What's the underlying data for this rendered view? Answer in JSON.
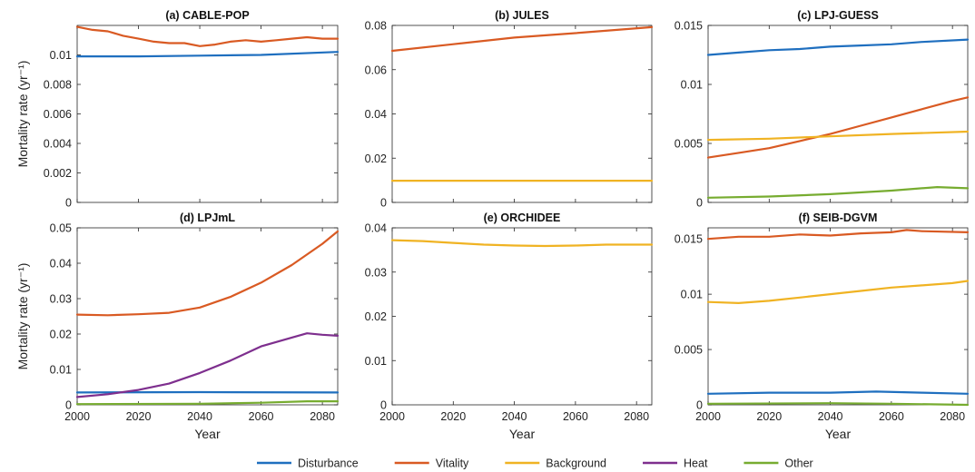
{
  "colors": {
    "Disturbance": "#1f6fbf",
    "Vitality": "#d95a23",
    "Background": "#f0b323",
    "Heat": "#7e2f8e",
    "Other": "#77ac30"
  },
  "legend": [
    "Disturbance",
    "Vitality",
    "Background",
    "Heat",
    "Other"
  ],
  "chart_data": [
    {
      "type": "line",
      "title": "(a) CABLE-POP",
      "xlabel": "",
      "ylabel": "Mortality rate (yr⁻¹)",
      "xlim": [
        2000,
        2085
      ],
      "ylim": [
        0,
        0.012
      ],
      "xticks": [],
      "yticks": [
        0,
        0.002,
        0.004,
        0.006,
        0.008,
        0.01
      ],
      "ytick_labels": [
        "0",
        "0.002",
        "0.004",
        "0.006",
        "0.008",
        "0.01"
      ],
      "series": [
        {
          "name": "Disturbance",
          "x": [
            2000,
            2020,
            2040,
            2060,
            2085
          ],
          "y": [
            0.0099,
            0.0099,
            0.00995,
            0.01,
            0.0102
          ]
        },
        {
          "name": "Vitality",
          "x": [
            2000,
            2005,
            2010,
            2015,
            2020,
            2025,
            2030,
            2035,
            2040,
            2045,
            2050,
            2055,
            2060,
            2065,
            2070,
            2075,
            2080,
            2085
          ],
          "y": [
            0.0119,
            0.0117,
            0.0116,
            0.0113,
            0.0111,
            0.0109,
            0.0108,
            0.0108,
            0.0106,
            0.0107,
            0.0109,
            0.011,
            0.0109,
            0.011,
            0.0111,
            0.0112,
            0.0111,
            0.0111
          ]
        }
      ]
    },
    {
      "type": "line",
      "title": "(b) JULES",
      "xlabel": "",
      "ylabel": "",
      "xlim": [
        2000,
        2085
      ],
      "ylim": [
        0,
        0.08
      ],
      "xticks": [],
      "yticks": [
        0,
        0.02,
        0.04,
        0.06,
        0.08
      ],
      "ytick_labels": [
        "0",
        "0.02",
        "0.04",
        "0.06",
        "0.08"
      ],
      "series": [
        {
          "name": "Vitality",
          "x": [
            2000,
            2020,
            2040,
            2060,
            2085
          ],
          "y": [
            0.0685,
            0.0715,
            0.0745,
            0.0765,
            0.0792
          ]
        },
        {
          "name": "Background",
          "x": [
            2000,
            2085
          ],
          "y": [
            0.0098,
            0.0098
          ]
        }
      ]
    },
    {
      "type": "line",
      "title": "(c) LPJ-GUESS",
      "xlabel": "",
      "ylabel": "",
      "xlim": [
        2000,
        2085
      ],
      "ylim": [
        0,
        0.015
      ],
      "xticks": [],
      "yticks": [
        0,
        0.005,
        0.01,
        0.015
      ],
      "ytick_labels": [
        "0",
        "0.005",
        "0.01",
        "0.015"
      ],
      "series": [
        {
          "name": "Disturbance",
          "x": [
            2000,
            2010,
            2020,
            2030,
            2040,
            2050,
            2060,
            2070,
            2085
          ],
          "y": [
            0.0125,
            0.0127,
            0.0129,
            0.013,
            0.0132,
            0.0133,
            0.0134,
            0.0136,
            0.0138
          ]
        },
        {
          "name": "Vitality",
          "x": [
            2000,
            2010,
            2020,
            2030,
            2040,
            2050,
            2060,
            2070,
            2080,
            2085
          ],
          "y": [
            0.0038,
            0.0042,
            0.0046,
            0.0052,
            0.0058,
            0.0065,
            0.0072,
            0.0079,
            0.0086,
            0.0089
          ]
        },
        {
          "name": "Background",
          "x": [
            2000,
            2020,
            2040,
            2060,
            2085
          ],
          "y": [
            0.0053,
            0.0054,
            0.0056,
            0.0058,
            0.006
          ]
        },
        {
          "name": "Other",
          "x": [
            2000,
            2020,
            2040,
            2060,
            2075,
            2085
          ],
          "y": [
            0.0004,
            0.0005,
            0.0007,
            0.001,
            0.0013,
            0.0012
          ]
        }
      ]
    },
    {
      "type": "line",
      "title": "(d) LPJmL",
      "xlabel": "Year",
      "ylabel": "Mortality rate (yr⁻¹)",
      "xlim": [
        2000,
        2085
      ],
      "ylim": [
        0,
        0.05
      ],
      "xticks": [
        2000,
        2020,
        2040,
        2060,
        2080
      ],
      "yticks": [
        0,
        0.01,
        0.02,
        0.03,
        0.04,
        0.05
      ],
      "ytick_labels": [
        "0",
        "0.01",
        "0.02",
        "0.03",
        "0.04",
        "0.05"
      ],
      "series": [
        {
          "name": "Disturbance",
          "x": [
            2000,
            2040,
            2085
          ],
          "y": [
            0.0035,
            0.0036,
            0.0035
          ]
        },
        {
          "name": "Vitality",
          "x": [
            2000,
            2010,
            2020,
            2030,
            2040,
            2050,
            2060,
            2070,
            2080,
            2085
          ],
          "y": [
            0.0255,
            0.0253,
            0.0256,
            0.026,
            0.0275,
            0.0305,
            0.0345,
            0.0395,
            0.0455,
            0.049
          ]
        },
        {
          "name": "Heat",
          "x": [
            2000,
            2010,
            2020,
            2030,
            2040,
            2050,
            2060,
            2070,
            2075,
            2080,
            2085
          ],
          "y": [
            0.0022,
            0.003,
            0.0042,
            0.006,
            0.009,
            0.0125,
            0.0165,
            0.019,
            0.0202,
            0.0198,
            0.0195
          ]
        },
        {
          "name": "Other",
          "x": [
            2000,
            2040,
            2060,
            2075,
            2085
          ],
          "y": [
            0.0002,
            0.0003,
            0.0006,
            0.001,
            0.001
          ]
        }
      ]
    },
    {
      "type": "line",
      "title": "(e) ORCHIDEE",
      "xlabel": "Year",
      "ylabel": "",
      "xlim": [
        2000,
        2085
      ],
      "ylim": [
        0,
        0.04
      ],
      "xticks": [
        2000,
        2020,
        2040,
        2060,
        2080
      ],
      "yticks": [
        0,
        0.01,
        0.02,
        0.03,
        0.04
      ],
      "ytick_labels": [
        "0",
        "0.01",
        "0.02",
        "0.03",
        "0.04"
      ],
      "series": [
        {
          "name": "Background",
          "x": [
            2000,
            2010,
            2020,
            2030,
            2040,
            2050,
            2060,
            2070,
            2085
          ],
          "y": [
            0.0372,
            0.037,
            0.0366,
            0.0362,
            0.036,
            0.0359,
            0.036,
            0.0362,
            0.0362
          ]
        }
      ]
    },
    {
      "type": "line",
      "title": "(f) SEIB-DGVM",
      "xlabel": "Year",
      "ylabel": "",
      "xlim": [
        2000,
        2085
      ],
      "ylim": [
        0,
        0.016
      ],
      "xticks": [
        2000,
        2020,
        2040,
        2060,
        2080
      ],
      "yticks": [
        0,
        0.005,
        0.01,
        0.015
      ],
      "ytick_labels": [
        "0",
        "0.005",
        "0.01",
        "0.015"
      ],
      "series": [
        {
          "name": "Disturbance",
          "x": [
            2000,
            2020,
            2040,
            2055,
            2070,
            2085
          ],
          "y": [
            0.001,
            0.0011,
            0.0011,
            0.0012,
            0.0011,
            0.001
          ]
        },
        {
          "name": "Vitality",
          "x": [
            2000,
            2010,
            2020,
            2030,
            2040,
            2050,
            2060,
            2065,
            2070,
            2085
          ],
          "y": [
            0.015,
            0.0152,
            0.0152,
            0.0154,
            0.0153,
            0.0155,
            0.0156,
            0.0158,
            0.0157,
            0.0156
          ]
        },
        {
          "name": "Background",
          "x": [
            2000,
            2010,
            2020,
            2030,
            2040,
            2050,
            2060,
            2070,
            2080,
            2085
          ],
          "y": [
            0.0093,
            0.0092,
            0.0094,
            0.0097,
            0.01,
            0.0103,
            0.0106,
            0.0108,
            0.011,
            0.0112
          ]
        },
        {
          "name": "Other",
          "x": [
            2000,
            2040,
            2060,
            2085
          ],
          "y": [
            0.0001,
            0.00015,
            0.0001,
            0.0
          ]
        }
      ]
    }
  ]
}
